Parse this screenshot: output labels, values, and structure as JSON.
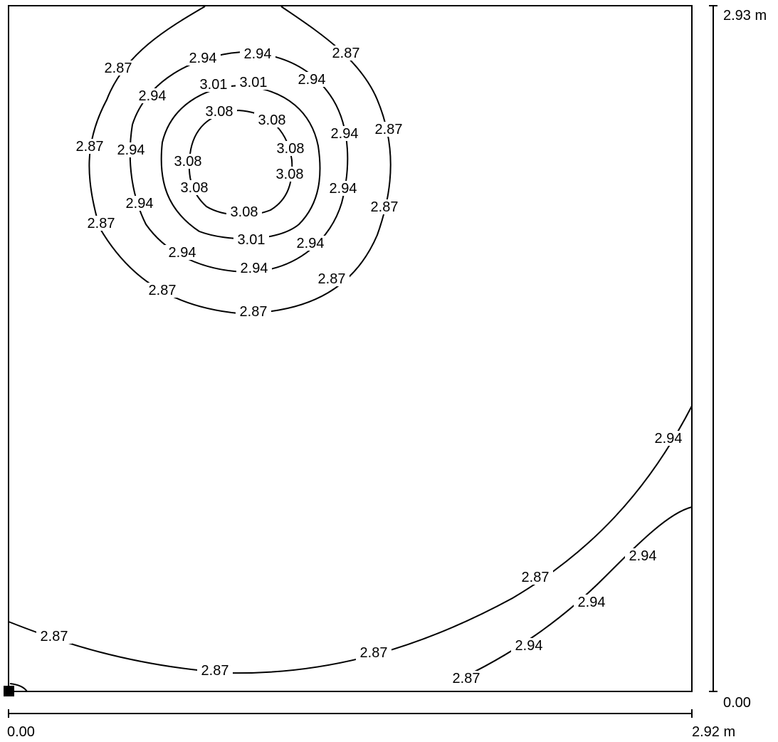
{
  "axes": {
    "x_start": "0.00",
    "x_end": "2.92 m",
    "y_start": "0.00",
    "y_end": "2.93 m"
  },
  "contour_labels": {
    "top": [
      "2.87",
      "2.94",
      "2.94",
      "2.87",
      "2.94",
      "3.01",
      "3.01",
      "2.94",
      "3.08",
      "3.08",
      "2.94",
      "2.87",
      "2.87",
      "2.94",
      "3.08",
      "3.08",
      "3.08",
      "3.08",
      "2.94",
      "2.87",
      "2.94",
      "3.08",
      "2.87",
      "3.01",
      "2.94",
      "2.94",
      "2.94",
      "2.87",
      "2.87",
      "2.87"
    ],
    "bottom": [
      "2.87",
      "2.94",
      "2.87",
      "2.94",
      "2.94",
      "2.87",
      "2.87",
      "2.87",
      "2.94"
    ]
  },
  "colors": {
    "line": "#000000",
    "background": "#ffffff"
  }
}
